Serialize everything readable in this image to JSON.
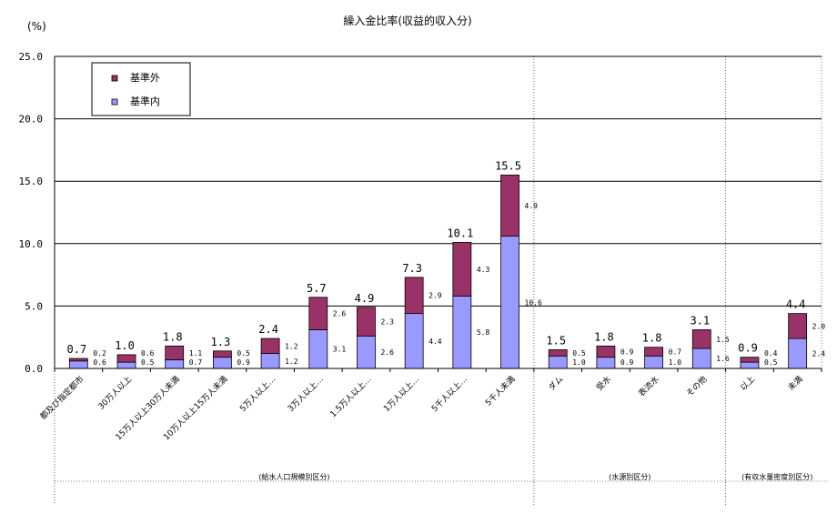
{
  "chart_data": {
    "type": "bar",
    "stacked": true,
    "title": "繰入金比率(収益的収入分)",
    "ylabel": "(%)",
    "ylim": [
      0,
      25
    ],
    "yticks": [
      "0.0",
      "5.0",
      "10.0",
      "15.0",
      "20.0",
      "25.0"
    ],
    "grid": true,
    "legend_position": "top-left",
    "categories": [
      "都及び指定都市",
      "30万人以上",
      "15万人以上30万人未満",
      "10万人以上15万人未満",
      "5万人以上…",
      "3万人以上…",
      "1.5万人以上…",
      "1万人以上…",
      "5千人以上…",
      "5千人未満",
      "ダム",
      "受水",
      "表流水",
      "その他",
      "以上",
      "未満"
    ],
    "series": [
      {
        "name": "基準内",
        "color": "#9999ff",
        "values": [
          0.6,
          0.5,
          0.7,
          0.9,
          1.2,
          3.1,
          2.6,
          4.4,
          5.8,
          10.6,
          1.0,
          0.9,
          1.0,
          1.6,
          0.5,
          2.4
        ]
      },
      {
        "name": "基準外",
        "color": "#993366",
        "values": [
          0.2,
          0.6,
          1.1,
          0.5,
          1.2,
          2.6,
          2.3,
          2.9,
          4.3,
          4.9,
          0.5,
          0.9,
          0.7,
          1.5,
          0.4,
          2.0
        ]
      }
    ],
    "totals": [
      0.7,
      1.0,
      1.8,
      1.3,
      2.4,
      5.7,
      4.9,
      7.3,
      10.1,
      15.5,
      1.5,
      1.8,
      1.8,
      3.1,
      0.9,
      4.4
    ],
    "groups": [
      {
        "label": "(給水人口規模別区分)",
        "start": 0,
        "end": 9
      },
      {
        "label": "(水源別区分)",
        "start": 10,
        "end": 13
      },
      {
        "label": "(有収水量密度別区分)",
        "start": 14,
        "end": 15
      }
    ]
  }
}
